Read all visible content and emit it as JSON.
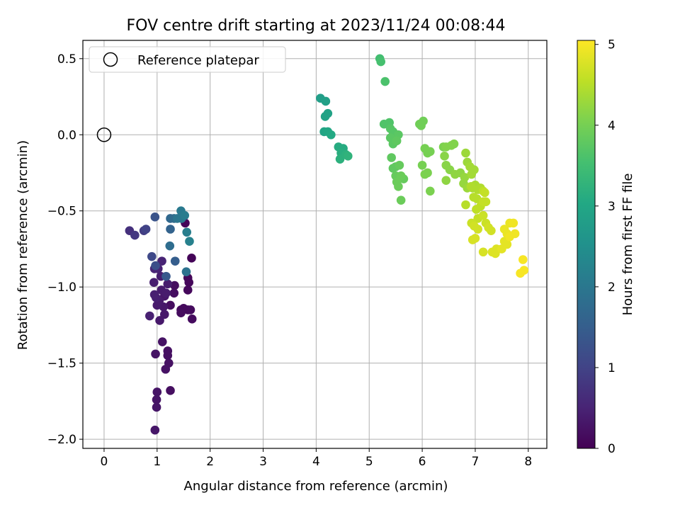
{
  "chart_data": {
    "type": "scatter",
    "title": "FOV centre drift starting at 2023/11/24 00:08:44",
    "xlabel": "Angular distance from reference (arcmin)",
    "ylabel": "Rotation from reference (arcmin)",
    "xlim": [
      -0.4,
      8.35
    ],
    "ylim": [
      -2.06,
      0.62
    ],
    "xticks": [
      0,
      1,
      2,
      3,
      4,
      5,
      6,
      7,
      8
    ],
    "yticks": [
      -2.0,
      -1.5,
      -1.0,
      -0.5,
      0.0,
      0.5
    ],
    "xtick_labels": [
      "0",
      "1",
      "2",
      "3",
      "4",
      "5",
      "6",
      "7",
      "8"
    ],
    "ytick_labels": [
      "−2.0",
      "−1.5",
      "−1.0",
      "−0.5",
      "0.0",
      "0.5"
    ],
    "grid": true,
    "legend": {
      "placement": "upper-left",
      "entries": [
        {
          "label": "Reference platepar",
          "marker": "open-circle"
        }
      ]
    },
    "reference": {
      "x": 0,
      "y": 0
    },
    "colorbar": {
      "label": "Hours from first FF file",
      "range": [
        0,
        5.05
      ],
      "ticks": [
        0,
        1,
        2,
        3,
        4,
        5
      ],
      "tick_labels": [
        "0",
        "1",
        "2",
        "3",
        "4",
        "5"
      ],
      "colormap": "viridis"
    },
    "points": [
      [
        1.65,
        -0.81,
        0.05
      ],
      [
        1.53,
        -0.58,
        0.06
      ],
      [
        1.58,
        -0.94,
        0.08
      ],
      [
        1.6,
        -0.97,
        0.09
      ],
      [
        1.58,
        -1.02,
        0.1
      ],
      [
        1.45,
        -1.15,
        0.11
      ],
      [
        1.5,
        -1.14,
        0.12
      ],
      [
        1.58,
        -1.15,
        0.13
      ],
      [
        1.63,
        -1.15,
        0.14
      ],
      [
        1.66,
        -1.21,
        0.15
      ],
      [
        1.45,
        -1.17,
        0.16
      ],
      [
        1.33,
        -0.99,
        0.17
      ],
      [
        1.32,
        -1.04,
        0.18
      ],
      [
        1.25,
        -1.12,
        0.19
      ],
      [
        1.25,
        -1.68,
        0.2
      ],
      [
        1.2,
        -1.42,
        0.21
      ],
      [
        1.2,
        -1.45,
        0.22
      ],
      [
        1.22,
        -1.5,
        0.23
      ],
      [
        1.16,
        -1.54,
        0.24
      ],
      [
        1.1,
        -1.36,
        0.25
      ],
      [
        0.97,
        -1.44,
        0.26
      ],
      [
        1.0,
        -1.69,
        0.27
      ],
      [
        0.99,
        -1.74,
        0.28
      ],
      [
        0.99,
        -1.79,
        0.29
      ],
      [
        0.96,
        -1.94,
        0.3
      ],
      [
        1.14,
        -1.06,
        0.32
      ],
      [
        1.12,
        -1.13,
        0.33
      ],
      [
        1.14,
        -1.18,
        0.34
      ],
      [
        1.05,
        -1.22,
        0.35
      ],
      [
        1.0,
        -1.12,
        0.36
      ],
      [
        1.04,
        -1.09,
        0.37
      ],
      [
        1.08,
        -1.02,
        0.38
      ],
      [
        1.17,
        -1.04,
        0.39
      ],
      [
        1.2,
        -0.98,
        0.4
      ],
      [
        1.07,
        -0.93,
        0.41
      ],
      [
        0.94,
        -0.97,
        0.42
      ],
      [
        0.98,
        -1.07,
        0.44
      ],
      [
        0.95,
        -1.05,
        0.45
      ],
      [
        0.86,
        -1.19,
        0.46
      ],
      [
        1.02,
        -0.88,
        0.48
      ],
      [
        1.09,
        -0.83,
        0.5
      ],
      [
        0.95,
        -0.88,
        0.52
      ],
      [
        0.48,
        -0.63,
        0.7
      ],
      [
        0.58,
        -0.66,
        0.8
      ],
      [
        0.75,
        -0.63,
        0.9
      ],
      [
        0.79,
        -0.62,
        1.0
      ],
      [
        0.9,
        -0.8,
        1.1
      ],
      [
        0.97,
        -0.86,
        1.2
      ],
      [
        0.96,
        -0.54,
        1.3
      ],
      [
        1.17,
        -0.93,
        1.4
      ],
      [
        1.34,
        -0.83,
        1.5
      ],
      [
        1.25,
        -0.62,
        1.6
      ],
      [
        1.25,
        -0.55,
        1.7
      ],
      [
        1.32,
        -0.55,
        1.75
      ],
      [
        1.24,
        -0.73,
        1.8
      ],
      [
        1.55,
        -0.9,
        1.9
      ],
      [
        1.38,
        -0.55,
        1.95
      ],
      [
        1.46,
        -0.55,
        2.0
      ],
      [
        1.45,
        -0.5,
        2.05
      ],
      [
        1.52,
        -0.53,
        2.1
      ],
      [
        1.56,
        -0.64,
        2.15
      ],
      [
        1.61,
        -0.7,
        2.2
      ],
      [
        4.08,
        0.24,
        2.8
      ],
      [
        4.18,
        0.22,
        2.85
      ],
      [
        4.17,
        0.12,
        2.9
      ],
      [
        4.22,
        0.14,
        2.9
      ],
      [
        4.15,
        0.02,
        2.95
      ],
      [
        4.22,
        0.02,
        3.0
      ],
      [
        4.28,
        0.0,
        3.05
      ],
      [
        4.42,
        -0.08,
        3.1
      ],
      [
        4.51,
        -0.09,
        3.1
      ],
      [
        4.47,
        -0.12,
        3.15
      ],
      [
        4.45,
        -0.16,
        3.2
      ],
      [
        4.56,
        -0.13,
        3.2
      ],
      [
        4.6,
        -0.14,
        3.25
      ],
      [
        5.2,
        0.5,
        3.5
      ],
      [
        5.22,
        0.48,
        3.55
      ],
      [
        5.3,
        0.35,
        3.6
      ],
      [
        5.28,
        0.07,
        3.65
      ],
      [
        5.38,
        0.08,
        3.65
      ],
      [
        5.4,
        0.04,
        3.7
      ],
      [
        5.45,
        0.02,
        3.7
      ],
      [
        5.55,
        0.0,
        3.75
      ],
      [
        5.4,
        -0.02,
        3.75
      ],
      [
        5.45,
        -0.06,
        3.75
      ],
      [
        5.52,
        -0.04,
        3.8
      ],
      [
        5.42,
        -0.15,
        3.8
      ],
      [
        5.5,
        -0.21,
        3.8
      ],
      [
        5.45,
        -0.22,
        3.8
      ],
      [
        5.57,
        -0.2,
        3.85
      ],
      [
        5.5,
        -0.27,
        3.85
      ],
      [
        5.58,
        -0.28,
        3.85
      ],
      [
        5.65,
        -0.29,
        3.85
      ],
      [
        5.6,
        -0.27,
        3.9
      ],
      [
        5.52,
        -0.31,
        3.9
      ],
      [
        5.55,
        -0.34,
        3.9
      ],
      [
        5.6,
        -0.43,
        3.9
      ],
      [
        5.95,
        0.07,
        3.95
      ],
      [
        5.98,
        0.06,
        3.95
      ],
      [
        6.02,
        0.09,
        3.95
      ],
      [
        6.05,
        -0.09,
        4.0
      ],
      [
        6.1,
        -0.12,
        4.0
      ],
      [
        6.15,
        -0.11,
        4.0
      ],
      [
        6.0,
        -0.2,
        4.0
      ],
      [
        6.05,
        -0.26,
        4.05
      ],
      [
        6.1,
        -0.25,
        4.05
      ],
      [
        6.15,
        -0.37,
        4.05
      ],
      [
        6.4,
        -0.08,
        4.05
      ],
      [
        6.45,
        -0.08,
        4.1
      ],
      [
        6.55,
        -0.07,
        4.1
      ],
      [
        6.6,
        -0.06,
        4.1
      ],
      [
        6.42,
        -0.14,
        4.15
      ],
      [
        6.45,
        -0.2,
        4.15
      ],
      [
        6.52,
        -0.23,
        4.15
      ],
      [
        6.45,
        -0.3,
        4.2
      ],
      [
        6.62,
        -0.26,
        4.2
      ],
      [
        6.72,
        -0.25,
        4.2
      ],
      [
        6.8,
        -0.28,
        4.25
      ],
      [
        6.78,
        -0.32,
        4.25
      ],
      [
        6.85,
        -0.35,
        4.3
      ],
      [
        6.82,
        -0.12,
        4.3
      ],
      [
        6.85,
        -0.18,
        4.3
      ],
      [
        6.9,
        -0.21,
        4.35
      ],
      [
        6.93,
        -0.26,
        4.35
      ],
      [
        6.98,
        -0.23,
        4.35
      ],
      [
        6.95,
        -0.35,
        4.4
      ],
      [
        7.0,
        -0.33,
        4.4
      ],
      [
        7.05,
        -0.36,
        4.45
      ],
      [
        7.1,
        -0.35,
        4.45
      ],
      [
        6.92,
        -0.34,
        4.45
      ],
      [
        6.82,
        -0.46,
        4.5
      ],
      [
        6.97,
        -0.41,
        4.5
      ],
      [
        7.03,
        -0.42,
        4.5
      ],
      [
        7.02,
        -0.49,
        4.55
      ],
      [
        7.1,
        -0.47,
        4.55
      ],
      [
        7.15,
        -0.37,
        4.55
      ],
      [
        7.18,
        -0.38,
        4.6
      ],
      [
        7.15,
        -0.44,
        4.6
      ],
      [
        7.2,
        -0.44,
        4.6
      ],
      [
        7.05,
        -0.55,
        4.6
      ],
      [
        7.15,
        -0.53,
        4.65
      ],
      [
        7.2,
        -0.58,
        4.65
      ],
      [
        6.93,
        -0.58,
        4.65
      ],
      [
        6.98,
        -0.6,
        4.7
      ],
      [
        7.05,
        -0.62,
        4.7
      ],
      [
        7.25,
        -0.61,
        4.7
      ],
      [
        7.3,
        -0.63,
        4.7
      ],
      [
        6.95,
        -0.69,
        4.75
      ],
      [
        7.0,
        -0.68,
        4.75
      ],
      [
        7.15,
        -0.77,
        4.75
      ],
      [
        7.32,
        -0.77,
        4.8
      ],
      [
        7.38,
        -0.78,
        4.8
      ],
      [
        7.4,
        -0.75,
        4.8
      ],
      [
        7.5,
        -0.75,
        4.85
      ],
      [
        7.55,
        -0.7,
        4.85
      ],
      [
        7.6,
        -0.72,
        4.85
      ],
      [
        7.55,
        -0.62,
        4.9
      ],
      [
        7.6,
        -0.65,
        4.9
      ],
      [
        7.65,
        -0.58,
        4.9
      ],
      [
        7.72,
        -0.58,
        4.95
      ],
      [
        7.65,
        -0.67,
        4.95
      ],
      [
        7.75,
        -0.65,
        4.95
      ],
      [
        7.9,
        -0.82,
        5.0
      ],
      [
        7.92,
        -0.89,
        5.0
      ],
      [
        7.85,
        -0.91,
        5.0
      ]
    ]
  }
}
